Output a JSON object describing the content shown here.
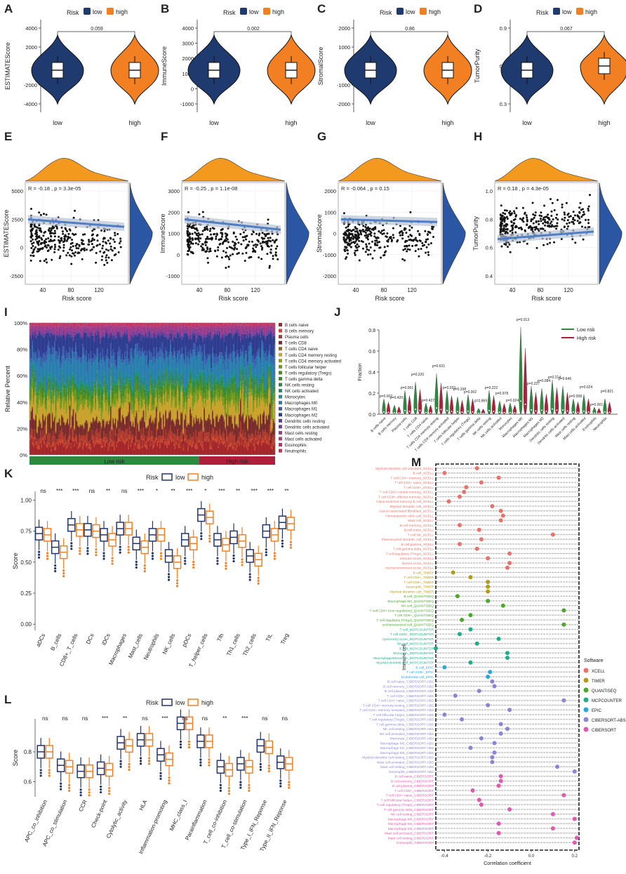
{
  "colors": {
    "low": "#1f3a6e",
    "high": "#f28022",
    "navy": "#22356b",
    "orange": "#f39a1e",
    "blue": "#2a56a4",
    "trend": "#4f7ec4",
    "red": "#b01f3a",
    "green": "#2b8a3e"
  },
  "chart_data": {
    "violins": [
      {
        "letter": "A",
        "ylabel": "ESTIMATEScore",
        "ticks": [
          "4000",
          "2000",
          "0",
          "-2000",
          "-4000"
        ],
        "pvalue": "0.059",
        "cats": [
          "low",
          "high"
        ],
        "legend_title": "Risk",
        "legend": [
          "low",
          "high"
        ]
      },
      {
        "letter": "B",
        "ylabel": "ImmuneScore",
        "ticks": [
          "4000",
          "3000",
          "2000",
          "1000",
          "0",
          "-1000"
        ],
        "pvalue": "0.002",
        "cats": [
          "low",
          "high"
        ],
        "legend_title": "Risk",
        "legend": [
          "low",
          "high"
        ]
      },
      {
        "letter": "C",
        "ylabel": "StromalScore",
        "ticks": [
          "2000",
          "1000",
          "0",
          "-1000",
          "-2000"
        ],
        "pvalue": "0.86",
        "cats": [
          "low",
          "high"
        ],
        "legend_title": "Risk",
        "legend": [
          "low",
          "high"
        ]
      },
      {
        "letter": "D",
        "ylabel": "TumorPurity",
        "ticks": [
          "0.9",
          "0.6",
          "0.3"
        ],
        "pvalue": "0.067",
        "cats": [
          "low",
          "high"
        ],
        "legend_title": "Risk",
        "legend": [
          "low",
          "high"
        ]
      }
    ],
    "scatters": [
      {
        "letter": "E",
        "ylabel": "ESTIMATEScore",
        "xlabel": "Risk score",
        "stat": "R = -0.18 , p = 3.3e-05",
        "yticks": [
          "5000",
          "2500",
          "0",
          "-2500"
        ],
        "xticks": [
          "40",
          "80",
          "120"
        ],
        "slope": -0.18
      },
      {
        "letter": "F",
        "ylabel": "ImmuneScore",
        "xlabel": "Risk score",
        "stat": "R = -0.25 , p = 1.1e-08",
        "yticks": [
          "3000",
          "2000",
          "1000",
          "0",
          "-1000"
        ],
        "xticks": [
          "40",
          "80",
          "120"
        ],
        "slope": -0.25
      },
      {
        "letter": "G",
        "ylabel": "StromalScore",
        "xlabel": "Risk score",
        "stat": "R = -0.064 , p = 0.15",
        "yticks": [
          "2000",
          "1000",
          "0",
          "-1000",
          "-2000"
        ],
        "xticks": [
          "40",
          "80",
          "120"
        ],
        "slope": -0.064
      },
      {
        "letter": "H",
        "ylabel": "TumorPurity",
        "xlabel": "Risk score",
        "stat": "R = 0.18 , p = 4.3e-05",
        "yticks": [
          "1.0",
          "0.8",
          "0.6",
          "0.4"
        ],
        "xticks": [
          "40",
          "80",
          "120"
        ],
        "slope": 0.18
      }
    ],
    "stacked": {
      "letter": "I",
      "ylabel": "Relative Percent",
      "yticks": [
        "100%",
        "80%",
        "60%",
        "40%",
        "20%",
        "0%"
      ],
      "legend": [
        "B cells naive",
        "B cells memory",
        "Plasma cells",
        "T cells CD8",
        "T cells CD4 naive",
        "T cells CD4 memory resting",
        "T cells CD4 memory activated",
        "T cells follicular helper",
        "T cells regulatory (Tregs)",
        "T cells gamma delta",
        "NK cells resting",
        "NK cells activated",
        "Monocytes",
        "Macrophages M0",
        "Macrophages M1",
        "Macrophages M2",
        "Dendritic cells resting",
        "Dendritic cells activated",
        "Mast cells resting",
        "Mast cells activated",
        "Eosinophils",
        "Neutrophils"
      ],
      "legend_colors": [
        "#a3262a",
        "#d1452c",
        "#b03a2e",
        "#7a2c2c",
        "#9b6a1c",
        "#c8a22c",
        "#8f9a1e",
        "#6f9a1e",
        "#4f8a22",
        "#3a8a2a",
        "#2d8a45",
        "#1f8f6a",
        "#1c8f8f",
        "#2a7fae",
        "#3a5fae",
        "#2e3d8f",
        "#5a3d9a",
        "#7a3d9a",
        "#9a3d8a",
        "#b03a7a",
        "#c0306a",
        "#c92f4f"
      ],
      "low_label": "Low risk",
      "high_label": "High risk"
    },
    "violin_j": {
      "letter": "J",
      "ylabel": "Fraction",
      "yticks": [
        "0.8",
        "0.6",
        "0.4",
        "0.2",
        "0.0"
      ],
      "legend": [
        "Low risk",
        "High risk"
      ],
      "cells": [
        "B cells naive",
        "B cells memory",
        "Plasma cells",
        "T cells CD8",
        "T cells CD4 naive",
        "T cells CD4 memory resting",
        "T cells CD4 memory activated",
        "T cells follicular helper",
        "T cells regulatory (Tregs)",
        "T cells gamma delta",
        "NK cells resting",
        "NK cells activated",
        "Monocytes",
        "Macrophages M0",
        "Macrophages M1",
        "Macrophages M2",
        "Dendritic cells resting",
        "Dendritic cells activated",
        "Mast cells resting",
        "Mast cells activated",
        "Eosinophils",
        "Neutrophils"
      ],
      "pvals": [
        "p=0.002",
        "p=0.420",
        "p=0.001",
        "p=0.220",
        "p=0.427",
        "p=0.631",
        "p=0.033",
        "p=0.338",
        "p=0.002",
        "p=0.869",
        "p=0.222",
        "p=0.978",
        "p=0.024",
        "p=0.013",
        "p=0.227",
        "p=0.084",
        "p=0.214",
        "p=0.646",
        "p=0.008",
        "p=0.024",
        "p=0.001",
        "p=0.821"
      ],
      "heights": [
        0.12,
        0.06,
        0.2,
        0.28,
        0.08,
        0.36,
        0.2,
        0.14,
        0.16,
        0.03,
        0.2,
        0.1,
        0.08,
        0.8,
        0.24,
        0.22,
        0.3,
        0.24,
        0.12,
        0.16,
        0.04,
        0.12
      ]
    },
    "boxplot_k": {
      "letter": "K",
      "ylabel": "Score",
      "legend_title": "Risk",
      "legend": [
        "low",
        "high"
      ],
      "yticks": [
        "1.00",
        "0.75",
        "0.50",
        "0.25",
        "0.00"
      ],
      "categories": [
        "aDCs",
        "B_cells",
        "CD8+_T_cells",
        "DCs",
        "iDCs",
        "Macrophages",
        "Mast_cells",
        "Neutrophils",
        "NK_cells",
        "pDCs",
        "T_helper_cells",
        "Tfh",
        "Th1_cells",
        "Th2_cells",
        "TIL",
        "Treg"
      ],
      "sig": [
        "ns",
        "***",
        "***",
        "ns",
        "**",
        "ns",
        "***",
        "*",
        "**",
        "***",
        "*",
        "***",
        "**",
        "***",
        "***",
        "**"
      ],
      "low_median": [
        0.73,
        0.62,
        0.8,
        0.76,
        0.72,
        0.77,
        0.65,
        0.72,
        0.55,
        0.68,
        0.88,
        0.68,
        0.7,
        0.55,
        0.75,
        0.82
      ],
      "high_median": [
        0.72,
        0.58,
        0.76,
        0.75,
        0.68,
        0.77,
        0.62,
        0.72,
        0.5,
        0.65,
        0.86,
        0.64,
        0.67,
        0.52,
        0.72,
        0.81
      ]
    },
    "boxplot_l": {
      "letter": "L",
      "ylabel": "Score",
      "legend_title": "Risk",
      "legend": [
        "low",
        "high"
      ],
      "yticks": [
        "0.8",
        "0.6"
      ],
      "categories": [
        "APC_co_inhibition",
        "APC_co_stimulation",
        "CCR",
        "Check-point",
        "Cytolytic_activity",
        "HLA",
        "Inflammation-promoting",
        "MHC_class_I",
        "Parainflammation",
        "T_cell_co-inhibition",
        "T_cell_co-stimulation",
        "Type_I_IFN_Reponse",
        "Type_II_IFN_Reponse"
      ],
      "sig": [
        "ns",
        "ns",
        "ns",
        "***",
        "**",
        "ns",
        "***",
        "ns",
        "ns",
        "**",
        "***",
        "ns",
        "ns"
      ],
      "low_median": [
        0.8,
        0.71,
        0.67,
        0.69,
        0.86,
        0.88,
        0.78,
        0.99,
        0.87,
        0.7,
        0.72,
        0.84,
        0.73
      ],
      "high_median": [
        0.8,
        0.7,
        0.67,
        0.68,
        0.84,
        0.88,
        0.75,
        0.99,
        0.87,
        0.68,
        0.7,
        0.83,
        0.72
      ]
    },
    "lollipop_m": {
      "letter": "M",
      "xlabel": "Correlation coefficient",
      "ylabel": "Immune cell",
      "xticks": [
        "-0.4",
        "-0.2",
        "0.0",
        "0.2"
      ],
      "legend_title": "Software",
      "software": [
        {
          "name": "XCELL",
          "color": "#e8736b"
        },
        {
          "name": "TIMER",
          "color": "#b59a1a"
        },
        {
          "name": "QUANTISEQ",
          "color": "#4aa82a"
        },
        {
          "name": "MCPCOUNTER",
          "color": "#1fae8a"
        },
        {
          "name": "EPIC",
          "color": "#27a9dc"
        },
        {
          "name": "CIBERSORT-ABS",
          "color": "#8a86d6"
        },
        {
          "name": "CIBERSORT",
          "color": "#df5ab0"
        }
      ],
      "rows": [
        {
          "label": "Myeloid dendritic cell activated_XCELL",
          "sw": 0,
          "r": -0.25
        },
        {
          "label": "B cell_XCELL",
          "sw": 0,
          "r": -0.4
        },
        {
          "label": "T cell CD4+ memory_XCELL",
          "sw": 0,
          "r": -0.15
        },
        {
          "label": "T cell CD4+ naive_XCELL",
          "sw": 0,
          "r": -0.23
        },
        {
          "label": "T cell CD8+_XCELL",
          "sw": 0,
          "r": -0.3
        },
        {
          "label": "T cell CD8+ central memory_XCELL",
          "sw": 0,
          "r": -0.31
        },
        {
          "label": "T cell CD8+ effector memory_XCELL",
          "sw": 0,
          "r": -0.33
        },
        {
          "label": "Class-switched memory B cell_XCELL",
          "sw": 0,
          "r": -0.38
        },
        {
          "label": "Myeloid dendritic cell_XCELL",
          "sw": 0,
          "r": -0.18
        },
        {
          "label": "Cancer associated fibroblast_XCELL",
          "sw": 0,
          "r": -0.14
        },
        {
          "label": "Hematopoietic stem cell_XCELL",
          "sw": 0,
          "r": -0.13
        },
        {
          "label": "Mast cell_XCELL",
          "sw": 0,
          "r": -0.14
        },
        {
          "label": "B cell memory_XCELL",
          "sw": 0,
          "r": -0.33
        },
        {
          "label": "B cell naive_XCELL",
          "sw": 0,
          "r": -0.24
        },
        {
          "label": "T cell NK_XCELL",
          "sw": 0,
          "r": 0.1
        },
        {
          "label": "Plasmacytoid dendritic cell_XCELL",
          "sw": 0,
          "r": -0.23
        },
        {
          "label": "B cell plasma_XCELL",
          "sw": 0,
          "r": -0.33
        },
        {
          "label": "T cell gamma delta_XCELL",
          "sw": 0,
          "r": -0.25
        },
        {
          "label": "T cell regulatory (Tregs)_XCELL",
          "sw": 0,
          "r": -0.1
        },
        {
          "label": "immune score_XCELL",
          "sw": 0,
          "r": -0.2
        },
        {
          "label": "stroma score_XCELL",
          "sw": 0,
          "r": -0.1
        },
        {
          "label": "microenvironment score_XCELL",
          "sw": 0,
          "r": -0.11
        },
        {
          "label": "B cell_TIMER",
          "sw": 1,
          "r": -0.36
        },
        {
          "label": "T cell CD4+_TIMER",
          "sw": 1,
          "r": -0.28
        },
        {
          "label": "T cell CD8+_TIMER",
          "sw": 1,
          "r": -0.2
        },
        {
          "label": "Neutrophil_TIMER",
          "sw": 1,
          "r": -0.2
        },
        {
          "label": "Myeloid dendritic cell_TIMER",
          "sw": 1,
          "r": -0.2
        },
        {
          "label": "B cell_QUANTISEQ",
          "sw": 2,
          "r": -0.34
        },
        {
          "label": "Macrophage M2_QUANTISEQ",
          "sw": 2,
          "r": -0.2
        },
        {
          "label": "NK cell_QUANTISEQ",
          "sw": 2,
          "r": -0.13
        },
        {
          "label": "T cell CD4+ (non-regulatory)_QUANTISEQ",
          "sw": 2,
          "r": 0.15
        },
        {
          "label": "T cell CD8+_QUANTISEQ",
          "sw": 2,
          "r": -0.28
        },
        {
          "label": "T cell regulatory (Tregs)_QUANTISEQ",
          "sw": 2,
          "r": -0.32
        },
        {
          "label": "uncharacterized cell_QUANTISEQ",
          "sw": 2,
          "r": 0.15
        },
        {
          "label": "T cell_MCPCOUNTER",
          "sw": 3,
          "r": -0.28
        },
        {
          "label": "T cell CD8+_MCPCOUNTER",
          "sw": 3,
          "r": -0.33
        },
        {
          "label": "cytotoxicity score_MCPCOUNTER",
          "sw": 3,
          "r": -0.15
        },
        {
          "label": "NK cell_MCPCOUNTER",
          "sw": 3,
          "r": -0.25
        },
        {
          "label": "B cell_MCPCOUNTER",
          "sw": 3,
          "r": -0.44
        },
        {
          "label": "Monocyte_MCPCOUNTER",
          "sw": 3,
          "r": -0.11
        },
        {
          "label": "Macrophage/Monocyte_MCPCOUNTER",
          "sw": 3,
          "r": -0.11
        },
        {
          "label": "Myeloid dendritic cell_MCPCOUNTER",
          "sw": 3,
          "r": -0.28
        },
        {
          "label": "B cell_EPIC",
          "sw": 4,
          "r": -0.4
        },
        {
          "label": "T cell CD8+_EPIC",
          "sw": 4,
          "r": -0.19
        },
        {
          "label": "Endothelial cell_EPIC",
          "sw": 4,
          "r": -0.2
        },
        {
          "label": "B cell naive_CIBERSORT-ABS",
          "sw": 5,
          "r": -0.18
        },
        {
          "label": "B cell memory_CIBERSORT-ABS",
          "sw": 5,
          "r": -0.17
        },
        {
          "label": "B cell plasma_CIBERSORT-ABS",
          "sw": 5,
          "r": -0.24
        },
        {
          "label": "T cell CD8+_CIBERSORT-ABS",
          "sw": 5,
          "r": -0.35
        },
        {
          "label": "T cell CD4+ naive_CIBERSORT-ABS",
          "sw": 5,
          "r": 0.15
        },
        {
          "label": "T cell CD4+ memory resting_CIBERSORT-ABS",
          "sw": 5,
          "r": -0.2
        },
        {
          "label": "T cell CD4+ memory activated_CIBERSORT-ABS",
          "sw": 5,
          "r": -0.1
        },
        {
          "label": "T cell follicular helper_CIBERSORT-ABS",
          "sw": 5,
          "r": -0.4
        },
        {
          "label": "T cell regulatory (Tregs)_CIBERSORT-ABS",
          "sw": 5,
          "r": -0.32
        },
        {
          "label": "T cell gamma delta_CIBERSORT-ABS",
          "sw": 5,
          "r": -0.14
        },
        {
          "label": "NK cell resting_CIBERSORT-ABS",
          "sw": 5,
          "r": -0.11
        },
        {
          "label": "NK cell activated_CIBERSORT-ABS",
          "sw": 5,
          "r": -0.14
        },
        {
          "label": "Monocyte_CIBERSORT-ABS",
          "sw": 5,
          "r": -0.23
        },
        {
          "label": "Macrophage M0_CIBERSORT-ABS",
          "sw": 5,
          "r": -0.17
        },
        {
          "label": "Macrophage M1_CIBERSORT-ABS",
          "sw": 5,
          "r": -0.28
        },
        {
          "label": "Macrophage M2_CIBERSORT-ABS",
          "sw": 5,
          "r": -0.17
        },
        {
          "label": "Myeloid dendritic cell resting_CIBERSORT-ABS",
          "sw": 5,
          "r": -0.18
        },
        {
          "label": "Mast cell activated_CIBERSORT-ABS",
          "sw": 5,
          "r": -0.18
        },
        {
          "label": "Mast cell resting_CIBERSORT-ABS",
          "sw": 5,
          "r": 0.12
        },
        {
          "label": "Eosinophil_CIBERSORT-ABS",
          "sw": 5,
          "r": 0.2
        },
        {
          "label": "B cell naive_CIBERSORT",
          "sw": 6,
          "r": -0.14
        },
        {
          "label": "B cell memory_CIBERSORT",
          "sw": 6,
          "r": -0.14
        },
        {
          "label": "B cell plasma_CIBERSORT",
          "sw": 6,
          "r": -0.15
        },
        {
          "label": "T cell CD8+_CIBERSORT",
          "sw": 6,
          "r": -0.27
        },
        {
          "label": "T cell CD4+ naive_CIBERSORT",
          "sw": 6,
          "r": 0.15
        },
        {
          "label": "T cell follicular helper_CIBERSORT",
          "sw": 6,
          "r": -0.24
        },
        {
          "label": "T cell regulatory (Tregs)_CIBERSORT",
          "sw": 6,
          "r": -0.23
        },
        {
          "label": "T cell gamma delta_CIBERSORT",
          "sw": 6,
          "r": -0.1
        },
        {
          "label": "NK cell resting_CIBERSORT",
          "sw": 6,
          "r": 0.1
        },
        {
          "label": "Macrophage M0_CIBERSORT",
          "sw": 6,
          "r": 0.2
        },
        {
          "label": "Macrophage M1_CIBERSORT",
          "sw": 6,
          "r": -0.15
        },
        {
          "label": "Macrophage M2_CIBERSORT",
          "sw": 6,
          "r": 0.1
        },
        {
          "label": "Mast cell activated_CIBERSORT",
          "sw": 6,
          "r": -0.15
        },
        {
          "label": "Mast cell resting_CIBERSORT",
          "sw": 6,
          "r": 0.21
        },
        {
          "label": "Eosinophil_CIBERSORT",
          "sw": 6,
          "r": 0.2
        }
      ]
    }
  }
}
